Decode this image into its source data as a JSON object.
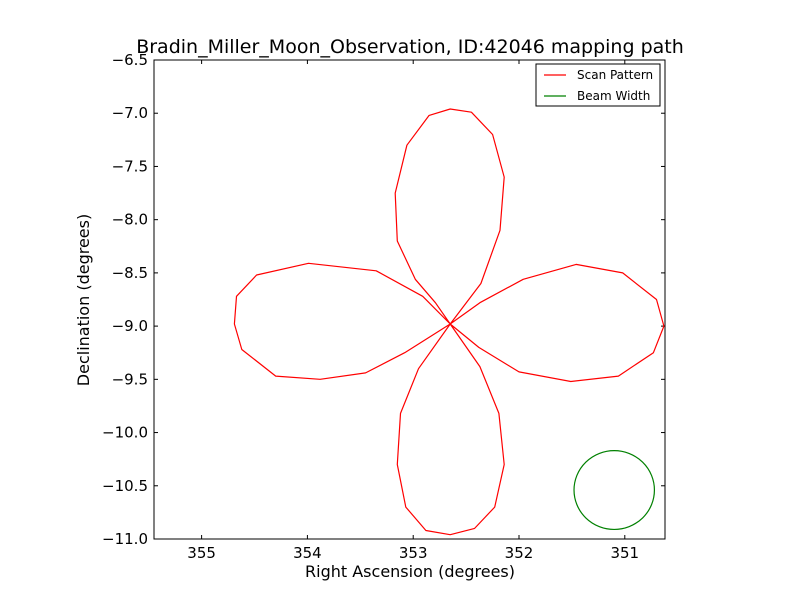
{
  "chart_data": {
    "type": "line",
    "title": "Bradin_Miller_Moon_Observation, ID:42046 mapping path",
    "xlabel": "Right Ascension (degrees)",
    "ylabel": "Declination (degrees)",
    "xlim": [
      355.45,
      350.62
    ],
    "ylim": [
      -11.0,
      -6.5
    ],
    "xticks": [
      {
        "value": 355,
        "label": "355"
      },
      {
        "value": 354,
        "label": "354"
      },
      {
        "value": 353,
        "label": "353"
      },
      {
        "value": 352,
        "label": "352"
      },
      {
        "value": 351,
        "label": "351"
      }
    ],
    "yticks": [
      {
        "value": -6.5,
        "label": "−6.5"
      },
      {
        "value": -7.0,
        "label": "−7.0"
      },
      {
        "value": -7.5,
        "label": "−7.5"
      },
      {
        "value": -8.0,
        "label": "−8.0"
      },
      {
        "value": -8.5,
        "label": "−8.5"
      },
      {
        "value": -9.0,
        "label": "−9.0"
      },
      {
        "value": -9.5,
        "label": "−9.5"
      },
      {
        "value": -10.0,
        "label": "−10.0"
      },
      {
        "value": -10.5,
        "label": "−10.5"
      },
      {
        "value": -11.0,
        "label": "−11.0"
      }
    ],
    "grid": false,
    "legend_position": "top-right",
    "series": [
      {
        "name": "Scan Pattern",
        "color": "#ff0000",
        "x": [
          352.65,
          352.36,
          352.18,
          352.14,
          352.25,
          352.45,
          352.65,
          352.85,
          353.06,
          353.17,
          353.15,
          352.98,
          352.79,
          352.65,
          352.37,
          351.96,
          351.46,
          351.02,
          350.7,
          350.63,
          350.73,
          351.06,
          351.51,
          352.0,
          352.38,
          352.65,
          352.37,
          352.19,
          352.14,
          352.23,
          352.42,
          352.65,
          352.88,
          353.07,
          353.15,
          353.12,
          352.95,
          352.65,
          352.91,
          353.35,
          353.99,
          354.48,
          354.67,
          354.69,
          354.62,
          354.3,
          353.88,
          353.45,
          353.08,
          352.65
        ],
        "y": [
          -8.98,
          -8.6,
          -8.1,
          -7.6,
          -7.2,
          -6.99,
          -6.96,
          -7.02,
          -7.3,
          -7.75,
          -8.2,
          -8.56,
          -8.78,
          -8.98,
          -8.78,
          -8.56,
          -8.42,
          -8.5,
          -8.75,
          -9.0,
          -9.25,
          -9.47,
          -9.52,
          -9.43,
          -9.2,
          -8.98,
          -9.38,
          -9.82,
          -10.3,
          -10.7,
          -10.9,
          -10.96,
          -10.92,
          -10.7,
          -10.3,
          -9.82,
          -9.4,
          -8.98,
          -8.72,
          -8.48,
          -8.41,
          -8.52,
          -8.72,
          -8.98,
          -9.22,
          -9.47,
          -9.5,
          -9.44,
          -9.25,
          -8.98
        ]
      },
      {
        "name": "Beam Width",
        "color": "#008000",
        "center": [
          351.1,
          -10.54
        ],
        "radius_ra": 0.38,
        "radius_dec": 0.37
      }
    ]
  }
}
